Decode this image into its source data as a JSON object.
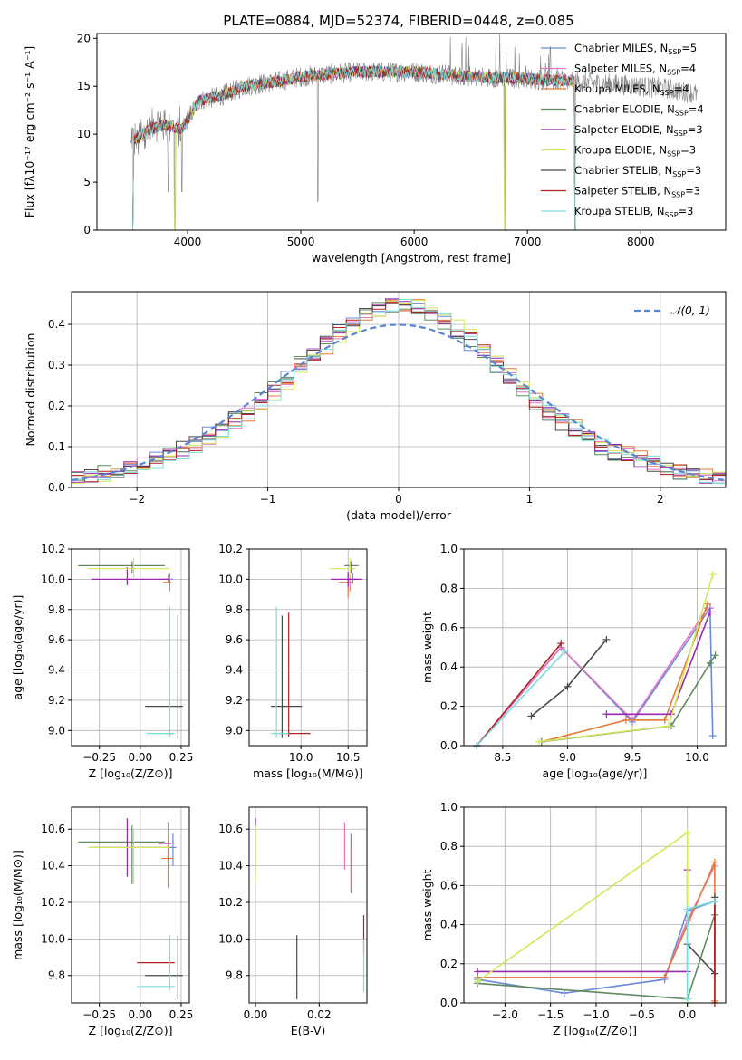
{
  "figure": {
    "title": "PLATE=0884, MJD=52374, FIBERID=0448, z=0.085"
  },
  "colors": {
    "chabrier_miles": "#6b8bd8",
    "salpeter_miles": "#e377c2",
    "kroupa_miles": "#e07b39",
    "chabrier_elodie": "#5e8a5e",
    "salpeter_elodie": "#9b27b0",
    "kroupa_elodie": "#d4e85a",
    "chabrier_stelib": "#4a4a4a",
    "salpeter_stelib": "#b22222",
    "kroupa_stelib": "#7fdcdc",
    "data": "#808080",
    "normal": "#5b86d6",
    "grid": "#b0b0b0"
  },
  "chart_data": [
    {
      "id": "spectrum",
      "type": "line",
      "xlabel": "wavelength [Angstrom, rest frame]",
      "ylabel": "Flux [fλ10⁻¹⁷ erg cm⁻² s⁻¹ A⁻¹]",
      "xlim": [
        3200,
        8750
      ],
      "ylim": [
        0,
        20.5
      ],
      "xticks": [
        "4000",
        "5000",
        "6000",
        "7000",
        "8000"
      ],
      "yticks": [
        "0",
        "5",
        "10",
        "15",
        "20"
      ],
      "legend_position": "right",
      "legend": [
        "Chabrier MILES, N_SSP=5",
        "Salpeter MILES, N_SSP=4",
        "Kroupa MILES, N_SSP=4",
        "Chabrier ELODIE, N_SSP=4",
        "Salpeter ELODIE, N_SSP=3",
        "Kroupa ELODIE, N_SSP=3",
        "Chabrier STELIB, N_SSP=3",
        "Salpeter STELIB, N_SSP=3",
        "Kroupa STELIB, N_SSP=3"
      ],
      "continuum": [
        [
          3500,
          9
        ],
        [
          3650,
          10.5
        ],
        [
          3800,
          11
        ],
        [
          3950,
          10.5
        ],
        [
          4100,
          13.5
        ],
        [
          4300,
          14
        ],
        [
          4500,
          15
        ],
        [
          4800,
          15.5
        ],
        [
          5000,
          16
        ],
        [
          5500,
          16.5
        ],
        [
          6000,
          16.5
        ],
        [
          6500,
          16
        ],
        [
          7000,
          15.8
        ],
        [
          7400,
          15.5
        ],
        [
          7800,
          15.2
        ],
        [
          8200,
          14.8
        ],
        [
          8500,
          14.2
        ]
      ],
      "features": [
        [
          3830,
          4
        ],
        [
          3890,
          0
        ],
        [
          3950,
          4
        ],
        [
          5150,
          3
        ],
        [
          6800,
          0
        ],
        [
          7420,
          0
        ]
      ],
      "model_range": [
        3500,
        7420
      ]
    },
    {
      "id": "residuals",
      "type": "histogram",
      "xlabel": "(data-model)/error",
      "ylabel": "Normed distribution",
      "xlim": [
        -2.5,
        2.5
      ],
      "ylim": [
        0,
        0.48
      ],
      "xticks": [
        "−2",
        "−1",
        "0",
        "1",
        "2"
      ],
      "yticks": [
        "0.0",
        "0.1",
        "0.2",
        "0.3",
        "0.4"
      ],
      "bin_width": 0.1,
      "legend": [
        "𝒩(0, 1)"
      ],
      "legend_position": "top-right"
    },
    {
      "id": "age_vs_Z",
      "type": "errorbar",
      "xlabel": "Z [log₁₀(Z/Z⊙)]",
      "ylabel": "age  [log₁₀(age/yr)]",
      "xlim": [
        -0.42,
        0.3
      ],
      "ylim": [
        8.9,
        10.2
      ],
      "xticks": [
        -0.25,
        0.0,
        0.25
      ],
      "xticklabels": [
        "−0.25",
        "0.00",
        "0.25"
      ],
      "yticks": [
        9.0,
        9.2,
        9.4,
        9.6,
        9.8,
        10.0,
        10.2
      ],
      "yticklabels": [
        "9.0",
        "9.2",
        "9.4",
        "9.6",
        "9.8",
        "10.0",
        "10.2"
      ],
      "points": [
        {
          "model": "chabrier_miles",
          "x": 0.18,
          "y": 10.0,
          "xerr": [
            0.02,
            0.02
          ],
          "yerr": [
            0.03,
            0.04
          ]
        },
        {
          "model": "salpeter_miles",
          "x": 0.17,
          "y": 10.0,
          "xerr": [
            0.05,
            0.02
          ],
          "yerr": [
            0.02,
            0.03
          ]
        },
        {
          "model": "kroupa_miles",
          "x": 0.18,
          "y": 9.98,
          "xerr": [
            0.04,
            0.01
          ],
          "yerr": [
            0.06,
            0.02
          ]
        },
        {
          "model": "chabrier_elodie",
          "x": -0.05,
          "y": 10.09,
          "xerr": [
            0.33,
            0.2
          ],
          "yerr": [
            0.05,
            0.03
          ]
        },
        {
          "model": "salpeter_elodie",
          "x": -0.08,
          "y": 10.0,
          "xerr": [
            0.22,
            0.26
          ],
          "yerr": [
            0.04,
            0.08
          ]
        },
        {
          "model": "kroupa_elodie",
          "x": -0.04,
          "y": 10.07,
          "xerr": [
            0.28,
            0.22
          ],
          "yerr": [
            0.06,
            0.07
          ]
        },
        {
          "model": "chabrier_stelib",
          "x": 0.23,
          "y": 9.16,
          "xerr": [
            0.2,
            0.03
          ],
          "yerr": [
            0.21,
            0.6
          ]
        },
        {
          "model": "salpeter_stelib",
          "x": 0.18,
          "y": 8.98,
          "xerr": [
            0.02,
            0.02
          ],
          "yerr": [
            0.02,
            0.02
          ]
        },
        {
          "model": "kroupa_stelib",
          "x": 0.18,
          "y": 8.98,
          "xerr": [
            0.14,
            0.03
          ],
          "yerr": [
            0.02,
            0.84
          ]
        }
      ]
    },
    {
      "id": "age_vs_mass",
      "type": "errorbar",
      "xlabel": "mass [log₁₀(M/M⊙)]",
      "ylabel": "",
      "xlim": [
        9.45,
        10.7
      ],
      "ylim": [
        8.9,
        10.2
      ],
      "xticks": [
        10.0,
        10.5
      ],
      "xticklabels": [
        "10.0",
        "10.5"
      ],
      "yticks": [
        9.0,
        9.2,
        9.4,
        9.6,
        9.8,
        10.0,
        10.2
      ],
      "yticklabels": [
        "9.0",
        "9.2",
        "9.4",
        "9.6",
        "9.8",
        "10.0",
        "10.2"
      ],
      "points": [
        {
          "model": "chabrier_miles",
          "x": 10.55,
          "y": 10.0,
          "xerr": [
            0.03,
            0.04
          ],
          "yerr": [
            0.03,
            0.04
          ]
        },
        {
          "model": "salpeter_miles",
          "x": 10.52,
          "y": 10.0,
          "xerr": [
            0.02,
            0.09
          ],
          "yerr": [
            0.08,
            0.04
          ]
        },
        {
          "model": "kroupa_miles",
          "x": 10.5,
          "y": 9.98,
          "xerr": [
            0.1,
            0.05
          ],
          "yerr": [
            0.1,
            0.05
          ]
        },
        {
          "model": "chabrier_elodie",
          "x": 10.53,
          "y": 10.09,
          "xerr": [
            0.07,
            0.08
          ],
          "yerr": [
            0.05,
            0.03
          ]
        },
        {
          "model": "salpeter_elodie",
          "x": 10.5,
          "y": 10.0,
          "xerr": [
            0.18,
            0.15
          ],
          "yerr": [
            0.05,
            0.05
          ]
        },
        {
          "model": "kroupa_elodie",
          "x": 10.52,
          "y": 10.07,
          "xerr": [
            0.22,
            0.06
          ],
          "yerr": [
            0.06,
            0.07
          ]
        },
        {
          "model": "chabrier_stelib",
          "x": 9.8,
          "y": 9.16,
          "xerr": [
            0.12,
            0.21
          ],
          "yerr": [
            0.21,
            0.6
          ]
        },
        {
          "model": "salpeter_stelib",
          "x": 9.87,
          "y": 8.98,
          "xerr": [
            0.1,
            0.23
          ],
          "yerr": [
            0.02,
            0.8
          ]
        },
        {
          "model": "kroupa_stelib",
          "x": 9.74,
          "y": 8.98,
          "xerr": [
            0.06,
            0.13
          ],
          "yerr": [
            0.02,
            0.84
          ]
        }
      ]
    },
    {
      "id": "weight_vs_age",
      "type": "line",
      "xlabel": "age  [log₁₀(age/yr)]",
      "ylabel": "mass weight",
      "xlim": [
        8.2,
        10.22
      ],
      "ylim": [
        0,
        1.0
      ],
      "xticks": [
        8.5,
        9.0,
        9.5,
        10.0
      ],
      "xticklabels": [
        "8.5",
        "9.0",
        "9.5",
        "10.0"
      ],
      "yticks": [
        0.0,
        0.2,
        0.4,
        0.6,
        0.8,
        1.0
      ],
      "yticklabels": [
        "0.0",
        "0.2",
        "0.4",
        "0.6",
        "0.8",
        "1.0"
      ],
      "series": [
        {
          "model": "chabrier_miles",
          "x": [
            8.3,
            8.95,
            9.5,
            10.1,
            10.12
          ],
          "y": [
            0.0,
            0.5,
            0.12,
            0.7,
            0.05
          ]
        },
        {
          "model": "salpeter_miles",
          "x": [
            8.3,
            8.95,
            9.5,
            10.08
          ],
          "y": [
            0.0,
            0.5,
            0.13,
            0.7
          ]
        },
        {
          "model": "kroupa_miles",
          "x": [
            8.8,
            9.45,
            9.75,
            10.08
          ],
          "y": [
            0.02,
            0.13,
            0.13,
            0.72
          ]
        },
        {
          "model": "chabrier_elodie",
          "x": [
            8.8,
            9.8,
            10.1,
            10.14
          ],
          "y": [
            0.02,
            0.1,
            0.42,
            0.46
          ]
        },
        {
          "model": "salpeter_elodie",
          "x": [
            9.3,
            9.8,
            10.1
          ],
          "y": [
            0.16,
            0.16,
            0.68
          ]
        },
        {
          "model": "kroupa_elodie",
          "x": [
            8.78,
            9.78,
            10.12
          ],
          "y": [
            0.02,
            0.1,
            0.87
          ]
        },
        {
          "model": "chabrier_stelib",
          "x": [
            8.72,
            9.0,
            9.3
          ],
          "y": [
            0.15,
            0.3,
            0.54
          ]
        },
        {
          "model": "salpeter_stelib",
          "x": [
            8.3,
            8.95
          ],
          "y": [
            0.0,
            0.52
          ]
        },
        {
          "model": "kroupa_stelib",
          "x": [
            8.3,
            8.98
          ],
          "y": [
            0.0,
            0.48
          ]
        }
      ]
    },
    {
      "id": "mass_vs_Z",
      "type": "errorbar",
      "xlabel": "Z [log₁₀(Z/Z⊙)]",
      "ylabel": "mass [log₁₀(M/M⊙)]",
      "xlim": [
        -0.42,
        0.3
      ],
      "ylim": [
        9.65,
        10.72
      ],
      "xticks": [
        -0.25,
        0.0,
        0.25
      ],
      "xticklabels": [
        "−0.25",
        "0.00",
        "0.25"
      ],
      "yticks": [
        9.8,
        10.0,
        10.2,
        10.4,
        10.6
      ],
      "yticklabels": [
        "9.8",
        "10.0",
        "10.2",
        "10.4",
        "10.6"
      ],
      "points": [
        {
          "model": "chabrier_miles",
          "x": 0.2,
          "y": 10.5,
          "xerr": [
            0.02,
            0.02
          ],
          "yerr": [
            0.1,
            0.08
          ]
        },
        {
          "model": "salpeter_miles",
          "x": 0.17,
          "y": 10.52,
          "xerr": [
            0.06,
            0.02
          ],
          "yerr": [
            0.1,
            0.12
          ]
        },
        {
          "model": "kroupa_miles",
          "x": 0.17,
          "y": 10.44,
          "xerr": [
            0.04,
            0.03
          ],
          "yerr": [
            0.16,
            0.1
          ]
        },
        {
          "model": "chabrier_elodie",
          "x": -0.05,
          "y": 10.53,
          "xerr": [
            0.33,
            0.2
          ],
          "yerr": [
            0.23,
            0.09
          ]
        },
        {
          "model": "salpeter_elodie",
          "x": -0.08,
          "y": 10.5,
          "xerr": [
            0.22,
            0.26
          ],
          "yerr": [
            0.16,
            0.16
          ]
        },
        {
          "model": "kroupa_elodie",
          "x": -0.04,
          "y": 10.5,
          "xerr": [
            0.28,
            0.22
          ],
          "yerr": [
            0.2,
            0.1
          ]
        },
        {
          "model": "chabrier_stelib",
          "x": 0.23,
          "y": 9.8,
          "xerr": [
            0.2,
            0.03
          ],
          "yerr": [
            0.13,
            0.22
          ]
        },
        {
          "model": "salpeter_stelib",
          "x": 0.18,
          "y": 9.87,
          "xerr": [
            0.2,
            0.03
          ],
          "yerr": [
            0.04,
            0.04
          ]
        },
        {
          "model": "kroupa_stelib",
          "x": 0.18,
          "y": 9.74,
          "xerr": [
            0.2,
            0.03
          ],
          "yerr": [
            0.02,
            0.28
          ]
        }
      ]
    },
    {
      "id": "mass_vs_ebv",
      "type": "errorbar",
      "xlabel": "E(B-V)",
      "ylabel": "",
      "xlim": [
        -0.002,
        0.035
      ],
      "ylim": [
        9.65,
        10.72
      ],
      "xticks": [
        0.0,
        0.02
      ],
      "xticklabels": [
        "0.00",
        "0.02"
      ],
      "yticks": [
        9.8,
        10.0,
        10.2,
        10.4,
        10.6
      ],
      "yticklabels": [
        "9.8",
        "10.0",
        "10.2",
        "10.4",
        "10.6"
      ],
      "points": [
        {
          "model": "chabrier_miles",
          "x": 0.03,
          "y": 10.45,
          "xerr": [
            0,
            0
          ],
          "yerr": [
            0.2,
            0.13
          ]
        },
        {
          "model": "salpeter_miles",
          "x": 0.028,
          "y": 10.5,
          "xerr": [
            0,
            0
          ],
          "yerr": [
            0.12,
            0.14
          ]
        },
        {
          "model": "kroupa_miles",
          "x": 0.03,
          "y": 10.4,
          "xerr": [
            0,
            0
          ],
          "yerr": [
            0.14,
            0.1
          ]
        },
        {
          "model": "salpeter_elodie",
          "x": 0.0,
          "y": 10.55,
          "xerr": [
            0,
            0
          ],
          "yerr": [
            0.2,
            0.11
          ]
        },
        {
          "model": "kroupa_elodie",
          "x": 0.0,
          "y": 10.42,
          "xerr": [
            0,
            0
          ],
          "yerr": [
            0.11,
            0.2
          ]
        },
        {
          "model": "chabrier_stelib",
          "x": 0.013,
          "y": 9.85,
          "xerr": [
            0,
            0
          ],
          "yerr": [
            0.18,
            0.17
          ]
        },
        {
          "model": "salpeter_stelib",
          "x": 0.034,
          "y": 10.02,
          "xerr": [
            0,
            0
          ],
          "yerr": [
            0.1,
            0.11
          ]
        },
        {
          "model": "kroupa_stelib",
          "x": 0.034,
          "y": 9.85,
          "xerr": [
            0,
            0
          ],
          "yerr": [
            0.14,
            0.15
          ]
        }
      ]
    },
    {
      "id": "weight_vs_Z",
      "type": "line",
      "xlabel": "Z [log₁₀(Z/Z⊙)]",
      "ylabel": "mass weight",
      "xlim": [
        -2.45,
        0.42
      ],
      "ylim": [
        0,
        1.0
      ],
      "xticks": [
        -2.0,
        -1.5,
        -1.0,
        -0.5,
        0.0
      ],
      "xticklabels": [
        "−2.0",
        "−1.5",
        "−1.0",
        "−0.5",
        "0.0"
      ],
      "yticks": [
        0.0,
        0.2,
        0.4,
        0.6,
        0.8,
        1.0
      ],
      "yticklabels": [
        "0.0",
        "0.2",
        "0.4",
        "0.6",
        "0.8",
        "1.0"
      ],
      "series": [
        {
          "model": "chabrier_miles",
          "x": [
            -2.3,
            -1.35,
            -0.25,
            0.0,
            0.3
          ],
          "y": [
            0.12,
            0.05,
            0.12,
            0.47,
            0.52
          ]
        },
        {
          "model": "salpeter_miles",
          "x": [
            -2.3,
            -0.25,
            0.0,
            0.3
          ],
          "y": [
            0.13,
            0.13,
            0.42,
            0.7
          ]
        },
        {
          "model": "kroupa_miles",
          "x": [
            -2.3,
            -0.25,
            0.3,
            0.3
          ],
          "y": [
            0.13,
            0.13,
            0.72,
            0.01
          ]
        },
        {
          "model": "chabrier_elodie",
          "x": [
            -2.3,
            0.0,
            0.3
          ],
          "y": [
            0.1,
            0.02,
            0.45
          ]
        },
        {
          "model": "salpeter_elodie",
          "x": [
            -2.3,
            0.0,
            0.0
          ],
          "y": [
            0.16,
            0.16,
            0.68
          ]
        },
        {
          "model": "kroupa_elodie",
          "x": [
            -2.3,
            0.0,
            0.0
          ],
          "y": [
            0.11,
            0.87,
            0.0
          ]
        },
        {
          "model": "chabrier_stelib",
          "x": [
            0.0,
            0.3,
            0.3
          ],
          "y": [
            0.3,
            0.15,
            0.54
          ]
        },
        {
          "model": "salpeter_stelib",
          "x": [
            0.3,
            0.3
          ],
          "y": [
            0.0,
            0.52
          ]
        },
        {
          "model": "kroupa_stelib",
          "x": [
            0.0,
            0.0,
            0.3
          ],
          "y": [
            0.02,
            0.48,
            0.52
          ]
        }
      ]
    }
  ]
}
